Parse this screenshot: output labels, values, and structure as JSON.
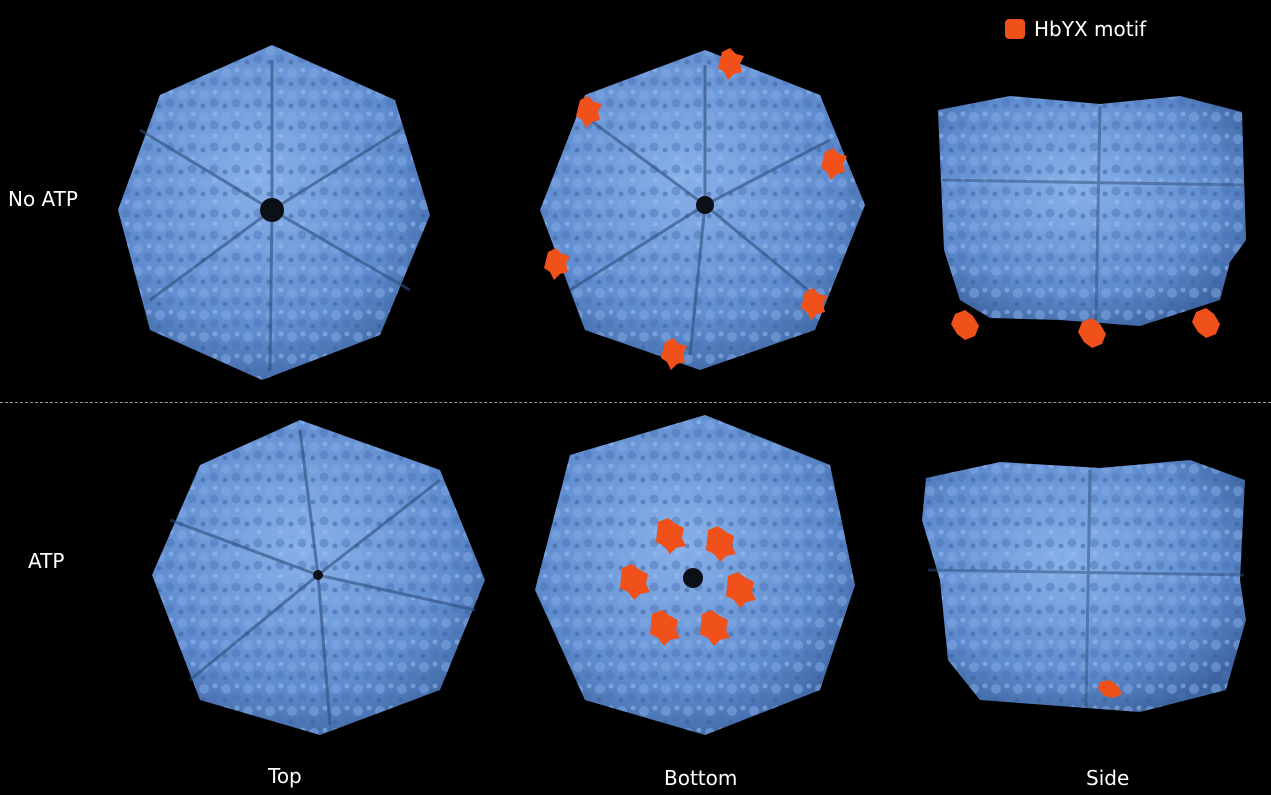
{
  "legend": {
    "label": "HbYX motif",
    "color": "#f0501a"
  },
  "rows": [
    {
      "label": "No ATP"
    },
    {
      "label": "ATP"
    }
  ],
  "columns": [
    {
      "label": "Top"
    },
    {
      "label": "Bottom"
    },
    {
      "label": "Side"
    }
  ],
  "colors": {
    "protein": "#6a96d6",
    "protein_shadow": "#2d4c7a",
    "background": "#000000"
  },
  "panels": [
    {
      "row": "No ATP",
      "view": "Top",
      "motif_count": 0
    },
    {
      "row": "No ATP",
      "view": "Bottom",
      "motif_count": 6
    },
    {
      "row": "No ATP",
      "view": "Side",
      "motif_count": 3
    },
    {
      "row": "ATP",
      "view": "Top",
      "motif_count": 0
    },
    {
      "row": "ATP",
      "view": "Bottom",
      "motif_count": 6
    },
    {
      "row": "ATP",
      "view": "Side",
      "motif_count": 1
    }
  ]
}
